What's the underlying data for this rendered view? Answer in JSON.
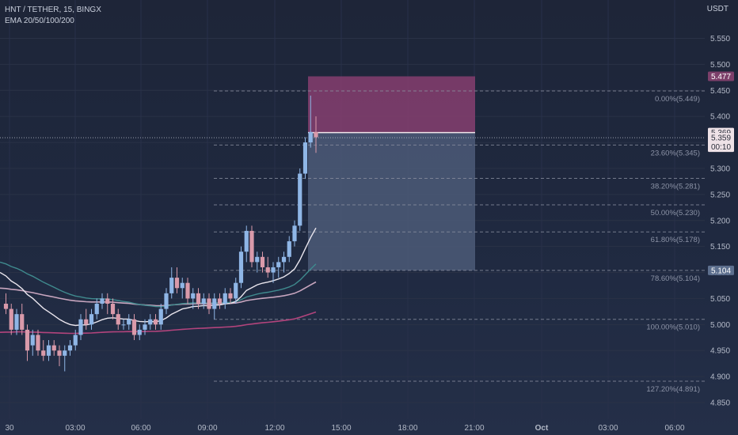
{
  "header": {
    "title": "HNT / TETHER, 15, BINGX",
    "indicator": "EMA 20/50/100/200",
    "currency": "USDT"
  },
  "colors": {
    "up": "#8fb6e6",
    "down": "#d99aaa",
    "ema20": "#eae6ee",
    "ema50": "#3f8a8e",
    "ema100": "#c8a6bf",
    "ema200": "#b2447c",
    "stop_zone": "#8a3f72",
    "target_zone": "#4c5b78",
    "fib_line": "#8a8fa0",
    "entry_line": "#f2e6ea"
  },
  "chart_data": {
    "type": "candlestick",
    "x_ticks": [
      "30",
      "03:00",
      "06:00",
      "09:00",
      "12:00",
      "15:00",
      "18:00",
      "21:00",
      "Oct",
      "03:00",
      "06:00"
    ],
    "y_ticks": [
      "5.550",
      "5.500",
      "5.450",
      "5.400",
      "5.350",
      "5.300",
      "5.250",
      "5.200",
      "5.150",
      "5.100",
      "5.050",
      "5.000",
      "4.950",
      "4.900",
      "4.850"
    ],
    "ylim": [
      4.84,
      5.58
    ],
    "candles": [
      [
        5.04,
        5.06,
        5.02,
        5.03
      ],
      [
        5.03,
        5.04,
        4.98,
        4.99
      ],
      [
        4.99,
        5.03,
        4.98,
        5.02
      ],
      [
        5.02,
        5.04,
        4.98,
        4.99
      ],
      [
        4.99,
        5.0,
        4.93,
        4.95
      ],
      [
        4.96,
        4.99,
        4.94,
        4.98
      ],
      [
        4.98,
        4.99,
        4.94,
        4.95
      ],
      [
        4.95,
        4.97,
        4.93,
        4.94
      ],
      [
        4.94,
        4.97,
        4.93,
        4.96
      ],
      [
        4.96,
        4.97,
        4.94,
        4.95
      ],
      [
        4.95,
        4.96,
        4.92,
        4.94
      ],
      [
        4.94,
        4.96,
        4.91,
        4.95
      ],
      [
        4.95,
        4.97,
        4.94,
        4.96
      ],
      [
        4.96,
        4.99,
        4.95,
        4.98
      ],
      [
        4.98,
        5.02,
        4.97,
        5.01
      ],
      [
        5.01,
        5.03,
        4.99,
        5.0
      ],
      [
        5.0,
        5.03,
        4.99,
        5.02
      ],
      [
        5.02,
        5.05,
        5.01,
        5.04
      ],
      [
        5.04,
        5.06,
        5.03,
        5.05
      ],
      [
        5.05,
        5.06,
        5.02,
        5.04
      ],
      [
        5.04,
        5.05,
        5.01,
        5.02
      ],
      [
        5.02,
        5.03,
        4.99,
        5.0
      ],
      [
        5.0,
        5.01,
        4.99,
        5.0
      ],
      [
        5.0,
        5.02,
        4.99,
        5.01
      ],
      [
        5.01,
        5.02,
        4.97,
        4.98
      ],
      [
        4.98,
        5.0,
        4.97,
        4.99
      ],
      [
        4.99,
        5.01,
        4.98,
        5.0
      ],
      [
        5.0,
        5.02,
        4.99,
        5.01
      ],
      [
        5.01,
        5.02,
        4.99,
        5.0
      ],
      [
        5.0,
        5.04,
        4.99,
        5.03
      ],
      [
        5.03,
        5.07,
        5.02,
        5.06
      ],
      [
        5.06,
        5.11,
        5.05,
        5.09
      ],
      [
        5.09,
        5.11,
        5.06,
        5.07
      ],
      [
        5.07,
        5.09,
        5.05,
        5.08
      ],
      [
        5.08,
        5.09,
        5.04,
        5.05
      ],
      [
        5.05,
        5.07,
        5.03,
        5.06
      ],
      [
        5.06,
        5.07,
        5.03,
        5.04
      ],
      [
        5.04,
        5.06,
        5.03,
        5.05
      ],
      [
        5.05,
        5.06,
        5.02,
        5.03
      ],
      [
        5.03,
        5.06,
        5.01,
        5.05
      ],
      [
        5.05,
        5.06,
        5.03,
        5.04
      ],
      [
        5.04,
        5.07,
        5.03,
        5.06
      ],
      [
        5.06,
        5.07,
        5.04,
        5.05
      ],
      [
        5.05,
        5.09,
        5.04,
        5.08
      ],
      [
        5.08,
        5.15,
        5.07,
        5.14
      ],
      [
        5.14,
        5.19,
        5.12,
        5.18
      ],
      [
        5.18,
        5.19,
        5.11,
        5.12
      ],
      [
        5.12,
        5.14,
        5.1,
        5.13
      ],
      [
        5.13,
        5.14,
        5.1,
        5.11
      ],
      [
        5.11,
        5.13,
        5.09,
        5.1
      ],
      [
        5.1,
        5.12,
        5.08,
        5.11
      ],
      [
        5.11,
        5.13,
        5.09,
        5.12
      ],
      [
        5.12,
        5.14,
        5.1,
        5.13
      ],
      [
        5.13,
        5.17,
        5.12,
        5.16
      ],
      [
        5.16,
        5.2,
        5.15,
        5.19
      ],
      [
        5.19,
        5.3,
        5.18,
        5.29
      ],
      [
        5.29,
        5.36,
        5.28,
        5.35
      ],
      [
        5.35,
        5.44,
        5.34,
        5.37
      ],
      [
        5.37,
        5.4,
        5.33,
        5.36
      ]
    ],
    "fib_levels": [
      {
        "label": "0.00%(5.449)",
        "price": 5.449
      },
      {
        "label": "23.60%(5.345)",
        "price": 5.345
      },
      {
        "label": "38.20%(5.281)",
        "price": 5.281
      },
      {
        "label": "50.00%(5.230)",
        "price": 5.23
      },
      {
        "label": "61.80%(5.178)",
        "price": 5.178
      },
      {
        "label": "78.60%(5.104)",
        "price": 5.104
      },
      {
        "label": "100.00%(5.010)",
        "price": 5.01
      },
      {
        "label": "127.20%(4.891)",
        "price": 4.891
      }
    ],
    "position": {
      "stop": 5.477,
      "entry": 5.369,
      "target": 5.104
    },
    "price_labels": [
      {
        "text": "5.477",
        "price": 5.477,
        "style": "stop"
      },
      {
        "text": "5.369",
        "price": 5.369,
        "style": "entry"
      },
      {
        "text": "5.359",
        "price": 5.359,
        "style": "last",
        "countdown": "00:10"
      },
      {
        "text": "5.104",
        "price": 5.104,
        "style": "target"
      }
    ],
    "last_price": 5.359
  }
}
